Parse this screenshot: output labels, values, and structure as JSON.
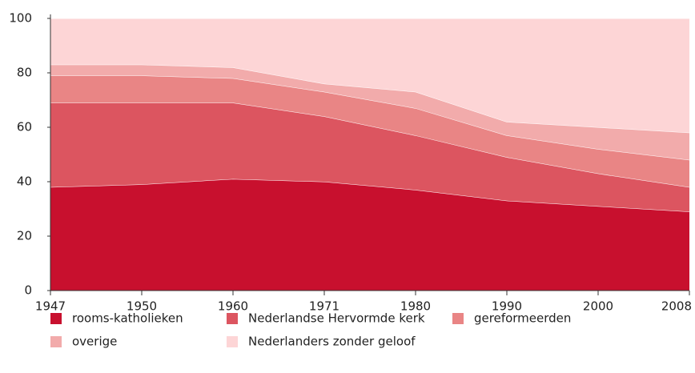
{
  "chart_data": {
    "type": "stacked-area",
    "categories": [
      "1947",
      "1950",
      "1960",
      "1971",
      "1980",
      "1990",
      "2000",
      "2008"
    ],
    "series": [
      {
        "name": "rooms-katholieken",
        "color": "#c8102e",
        "values": [
          38,
          39,
          41,
          40,
          37,
          33,
          31,
          29
        ]
      },
      {
        "name": "Nederlandse Hervormde kerk",
        "color": "#dc5560",
        "values": [
          31,
          30,
          28,
          24,
          20,
          16,
          12,
          9
        ]
      },
      {
        "name": "gereformeerden",
        "color": "#e98585",
        "values": [
          10,
          10,
          9,
          9,
          10,
          8,
          9,
          10
        ]
      },
      {
        "name": "overige",
        "color": "#f2abab",
        "values": [
          4,
          4,
          4,
          3,
          6,
          5,
          8,
          10
        ]
      },
      {
        "name": "Nederlanders zonder geloof",
        "color": "#fdd5d6",
        "values": [
          17,
          17,
          18,
          24,
          27,
          38,
          40,
          42
        ]
      }
    ],
    "ylim": [
      0,
      100
    ],
    "yticks": [
      0,
      20,
      40,
      60,
      80,
      100
    ]
  }
}
